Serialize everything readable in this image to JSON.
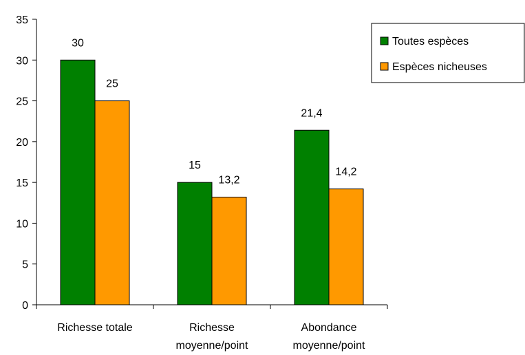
{
  "chart_data": {
    "type": "bar",
    "categories": [
      [
        "Richesse totale"
      ],
      [
        "Richesse",
        "moyenne/point"
      ],
      [
        "Abondance",
        "moyenne/point"
      ]
    ],
    "series": [
      {
        "name": "Toutes espèces",
        "values": [
          30,
          15,
          21.4
        ],
        "labels": [
          "30",
          "15",
          "21,4"
        ],
        "color": "#008000"
      },
      {
        "name": "Espèces nicheuses",
        "values": [
          25,
          13.2,
          14.2
        ],
        "labels": [
          "25",
          "13,2",
          "14,2"
        ],
        "color": "#FF9900"
      }
    ],
    "ylim": [
      0,
      35
    ],
    "yticks": [
      0,
      5,
      10,
      15,
      20,
      25,
      30,
      35
    ],
    "grid": false,
    "legend": "top-right"
  }
}
